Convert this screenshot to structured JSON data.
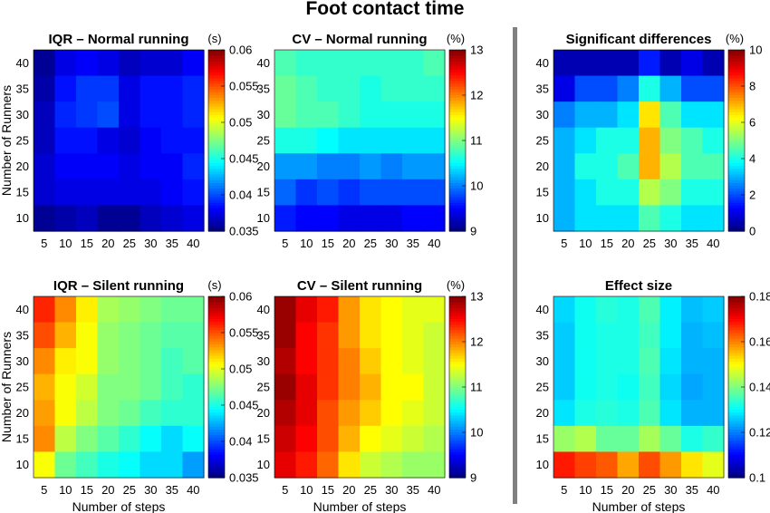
{
  "main_title": "Foot contact time",
  "divider_color": "#808080",
  "chart_data": [
    {
      "type": "heatmap",
      "title": "IQR – Normal running",
      "x": [
        5,
        10,
        15,
        20,
        25,
        30,
        35,
        40
      ],
      "y": [
        10,
        15,
        20,
        25,
        30,
        35,
        40
      ],
      "xlabel": "",
      "ylabel": "Number of Runners",
      "colorbar": {
        "unit": "(s)",
        "range": [
          0.035,
          0.06
        ],
        "ticks": [
          "0.035",
          "0.04",
          "0.045",
          "0.05",
          "0.055",
          "0.06"
        ]
      },
      "rows_top_to_bottom": [
        [
          0.0355,
          0.0375,
          0.038,
          0.0375,
          0.0365,
          0.037,
          0.037,
          0.038
        ],
        [
          0.036,
          0.0385,
          0.0395,
          0.0395,
          0.0375,
          0.0385,
          0.0385,
          0.039
        ],
        [
          0.0365,
          0.039,
          0.0395,
          0.04,
          0.0375,
          0.0385,
          0.0385,
          0.039
        ],
        [
          0.0365,
          0.0385,
          0.0385,
          0.0375,
          0.037,
          0.038,
          0.0385,
          0.0385
        ],
        [
          0.037,
          0.038,
          0.038,
          0.038,
          0.0375,
          0.038,
          0.038,
          0.039
        ],
        [
          0.037,
          0.0375,
          0.0375,
          0.0375,
          0.0375,
          0.0375,
          0.038,
          0.0385
        ],
        [
          0.0355,
          0.036,
          0.0365,
          0.0355,
          0.0355,
          0.0365,
          0.037,
          0.0375
        ]
      ]
    },
    {
      "type": "heatmap",
      "title": "CV – Normal running",
      "x": [
        5,
        10,
        15,
        20,
        25,
        30,
        35,
        40
      ],
      "y": [
        10,
        15,
        20,
        25,
        30,
        35,
        40
      ],
      "xlabel": "",
      "ylabel": "",
      "colorbar": {
        "unit": "(%)",
        "range": [
          9,
          13
        ],
        "ticks": [
          "9",
          "10",
          "11",
          "12",
          "13"
        ]
      },
      "rows_top_to_bottom": [
        [
          10.8,
          10.7,
          10.7,
          10.7,
          10.7,
          10.7,
          10.7,
          10.8
        ],
        [
          10.9,
          10.8,
          10.7,
          10.7,
          10.6,
          10.7,
          10.7,
          10.7
        ],
        [
          10.9,
          10.8,
          10.8,
          10.7,
          10.6,
          10.6,
          10.6,
          10.6
        ],
        [
          10.6,
          10.6,
          10.5,
          10.4,
          10.4,
          10.4,
          10.4,
          10.4
        ],
        [
          10.1,
          10.1,
          10.0,
          10.0,
          10.1,
          10.0,
          10.1,
          10.1
        ],
        [
          9.9,
          9.7,
          9.8,
          9.7,
          9.8,
          9.8,
          9.8,
          9.8
        ],
        [
          9.6,
          9.5,
          9.5,
          9.4,
          9.4,
          9.4,
          9.5,
          9.5
        ]
      ]
    },
    {
      "type": "heatmap",
      "title": "Significant differences",
      "x": [
        5,
        10,
        15,
        20,
        25,
        30,
        35,
        40
      ],
      "y": [
        10,
        15,
        20,
        25,
        30,
        35,
        40
      ],
      "xlabel": "",
      "ylabel": "",
      "colorbar": {
        "unit": "(%)",
        "range": [
          0,
          10
        ],
        "ticks": [
          "0",
          "2",
          "4",
          "6",
          "8",
          "10"
        ]
      },
      "rows_top_to_bottom": [
        [
          0.5,
          0.5,
          0.5,
          0.5,
          1.5,
          0.5,
          1.0,
          0.5
        ],
        [
          1.0,
          2.0,
          2.0,
          2.5,
          4.0,
          3.0,
          2.0,
          2.0
        ],
        [
          2.5,
          3.0,
          3.0,
          3.5,
          6.5,
          4.5,
          3.5,
          3.5
        ],
        [
          3.0,
          3.5,
          4.0,
          4.0,
          7.0,
          5.0,
          4.5,
          4.0
        ],
        [
          3.0,
          4.0,
          4.0,
          4.5,
          7.0,
          5.5,
          4.5,
          4.5
        ],
        [
          3.0,
          3.5,
          4.0,
          4.0,
          5.5,
          5.0,
          4.0,
          4.0
        ],
        [
          3.0,
          3.5,
          3.5,
          3.5,
          4.5,
          4.0,
          3.5,
          3.5
        ]
      ]
    },
    {
      "type": "heatmap",
      "title": "IQR – Silent running",
      "x": [
        5,
        10,
        15,
        20,
        25,
        30,
        35,
        40
      ],
      "y": [
        10,
        15,
        20,
        25,
        30,
        35,
        40
      ],
      "xlabel": "Number of steps",
      "ylabel": "Number of Runners",
      "colorbar": {
        "unit": "(s)",
        "range": [
          0.035,
          0.06
        ],
        "ticks": [
          "0.035",
          "0.04",
          "0.045",
          "0.05",
          "0.055",
          "0.06"
        ]
      },
      "rows_top_to_bottom": [
        [
          0.056,
          0.0535,
          0.051,
          0.0485,
          0.048,
          0.0475,
          0.047,
          0.047
        ],
        [
          0.055,
          0.0525,
          0.0505,
          0.048,
          0.0475,
          0.047,
          0.0465,
          0.0465
        ],
        [
          0.0535,
          0.051,
          0.0505,
          0.048,
          0.0475,
          0.047,
          0.046,
          0.0465
        ],
        [
          0.0525,
          0.0505,
          0.0495,
          0.0475,
          0.0475,
          0.047,
          0.046,
          0.0455
        ],
        [
          0.053,
          0.0505,
          0.049,
          0.0475,
          0.047,
          0.046,
          0.0455,
          0.0455
        ],
        [
          0.0535,
          0.049,
          0.0475,
          0.0465,
          0.0455,
          0.0445,
          0.0435,
          0.0445
        ],
        [
          0.0505,
          0.047,
          0.046,
          0.045,
          0.0445,
          0.0435,
          0.0435,
          0.042
        ]
      ]
    },
    {
      "type": "heatmap",
      "title": "CV – Silent running",
      "x": [
        5,
        10,
        15,
        20,
        25,
        30,
        35,
        40
      ],
      "y": [
        10,
        15,
        20,
        25,
        30,
        35,
        40
      ],
      "xlabel": "Number of steps",
      "ylabel": "",
      "colorbar": {
        "unit": "(%)",
        "range": [
          9,
          13
        ],
        "ticks": [
          "9",
          "10",
          "11",
          "12",
          "13"
        ]
      },
      "rows_top_to_bottom": [
        [
          12.9,
          12.6,
          12.4,
          11.9,
          11.6,
          11.5,
          11.4,
          11.4
        ],
        [
          12.9,
          12.5,
          12.3,
          11.9,
          11.6,
          11.5,
          11.4,
          11.3
        ],
        [
          12.8,
          12.5,
          12.3,
          12.0,
          11.7,
          11.5,
          11.4,
          11.3
        ],
        [
          12.9,
          12.6,
          12.3,
          12.0,
          11.8,
          11.5,
          11.5,
          11.3
        ],
        [
          12.8,
          12.6,
          12.2,
          11.9,
          11.7,
          11.5,
          11.4,
          11.3
        ],
        [
          12.7,
          12.5,
          12.2,
          11.8,
          11.5,
          11.4,
          11.3,
          11.2
        ],
        [
          12.6,
          12.4,
          12.1,
          11.6,
          11.3,
          11.2,
          11.1,
          11.1
        ]
      ]
    },
    {
      "type": "heatmap",
      "title": "Effect size",
      "x": [
        5,
        10,
        15,
        20,
        25,
        30,
        35,
        40
      ],
      "y": [
        10,
        15,
        20,
        25,
        30,
        35,
        40
      ],
      "xlabel": "Number of steps",
      "ylabel": "",
      "colorbar": {
        "unit": "",
        "range": [
          0.1,
          0.18
        ],
        "ticks": [
          "0.1",
          "0.12",
          "0.14",
          "0.16",
          "0.18"
        ]
      },
      "rows_top_to_bottom": [
        [
          0.127,
          0.131,
          0.133,
          0.132,
          0.136,
          0.129,
          0.125,
          0.126
        ],
        [
          0.126,
          0.131,
          0.132,
          0.132,
          0.135,
          0.129,
          0.124,
          0.125
        ],
        [
          0.126,
          0.131,
          0.132,
          0.132,
          0.136,
          0.128,
          0.124,
          0.124
        ],
        [
          0.126,
          0.131,
          0.132,
          0.131,
          0.135,
          0.127,
          0.123,
          0.124
        ],
        [
          0.128,
          0.132,
          0.133,
          0.132,
          0.136,
          0.128,
          0.124,
          0.124
        ],
        [
          0.142,
          0.144,
          0.138,
          0.138,
          0.143,
          0.138,
          0.132,
          0.134
        ],
        [
          0.168,
          0.165,
          0.163,
          0.157,
          0.164,
          0.158,
          0.152,
          0.148
        ]
      ]
    }
  ]
}
